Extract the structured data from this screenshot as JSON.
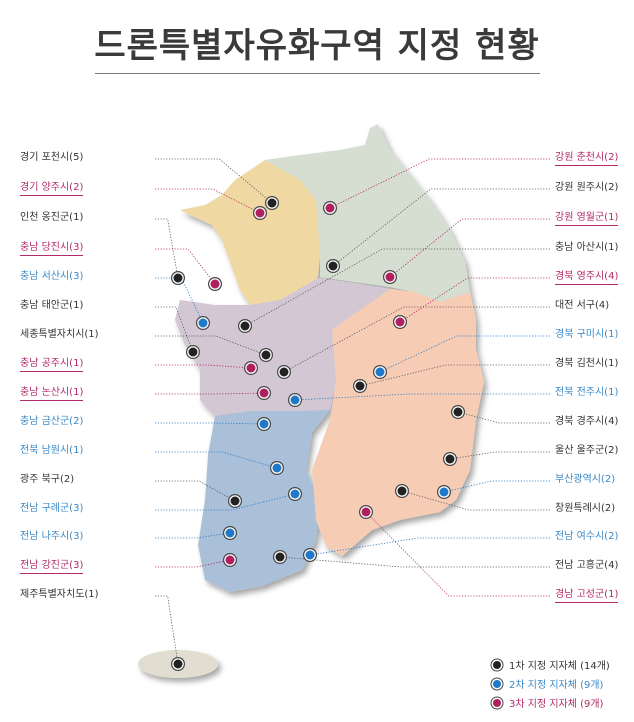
{
  "title": "드론특별자유화구역 지정 현황",
  "colors": {
    "group1": "#222222",
    "group2": "#1f78c8",
    "group3": "#b0205e",
    "region_gangwon": "#d5ded1",
    "region_gyeonggi": "#efd8a2",
    "region_chungcheong": "#d3c7d4",
    "region_gyeongsang": "#f6ccb5",
    "region_jeolla": "#a9c0d8",
    "region_jeju": "#e1ddd0"
  },
  "labels_left": [
    {
      "text": "경기 포천시(5)",
      "group": 1
    },
    {
      "text": "경기 양주시(2)",
      "group": 3
    },
    {
      "text": "인천 옹진군(1)",
      "group": 1
    },
    {
      "text": "충남 당진시(3)",
      "group": 3
    },
    {
      "text": "충남 서산시(3)",
      "group": 2
    },
    {
      "text": "충남 태안군(1)",
      "group": 1
    },
    {
      "text": "세종특별자치시(1)",
      "group": 1
    },
    {
      "text": "충남 공주시(1)",
      "group": 3
    },
    {
      "text": "충남 논산시(1)",
      "group": 3
    },
    {
      "text": "충남 금산군(2)",
      "group": 2
    },
    {
      "text": "전북 남원시(1)",
      "group": 2
    },
    {
      "text": "광주 북구(2)",
      "group": 1
    },
    {
      "text": "전남 구례군(3)",
      "group": 2
    },
    {
      "text": "전남 나주시(3)",
      "group": 2
    },
    {
      "text": "전남 강진군(3)",
      "group": 3
    },
    {
      "text": "제주특별자치도(1)",
      "group": 1
    }
  ],
  "labels_right": [
    {
      "text": "강원 춘천시(2)",
      "group": 3
    },
    {
      "text": "강원 원주시(2)",
      "group": 1
    },
    {
      "text": "강원 영월군(1)",
      "group": 3
    },
    {
      "text": "충남 아산시(1)",
      "group": 1
    },
    {
      "text": "경북 영주시(4)",
      "group": 3
    },
    {
      "text": "대전 서구(4)",
      "group": 1
    },
    {
      "text": "경북 구미시(1)",
      "group": 2
    },
    {
      "text": "경북 김천시(1)",
      "group": 1
    },
    {
      "text": "전북 전주시(1)",
      "group": 2
    },
    {
      "text": "경북 경주시(4)",
      "group": 1
    },
    {
      "text": "울산 울주군(2)",
      "group": 1
    },
    {
      "text": "부산광역시(2)",
      "group": 2
    },
    {
      "text": "창원특례시(2)",
      "group": 1
    },
    {
      "text": "전남 여수시(2)",
      "group": 2
    },
    {
      "text": "전남 고흥군(4)",
      "group": 1
    },
    {
      "text": "경남 고성군(1)",
      "group": 3
    }
  ],
  "legend": [
    {
      "text": "1차 지정 지자체 (14개)",
      "group": 1
    },
    {
      "text": "2차 지정 지자체 (9개)",
      "group": 2
    },
    {
      "text": "3차 지정 지자체 (9개)",
      "group": 3
    }
  ]
}
